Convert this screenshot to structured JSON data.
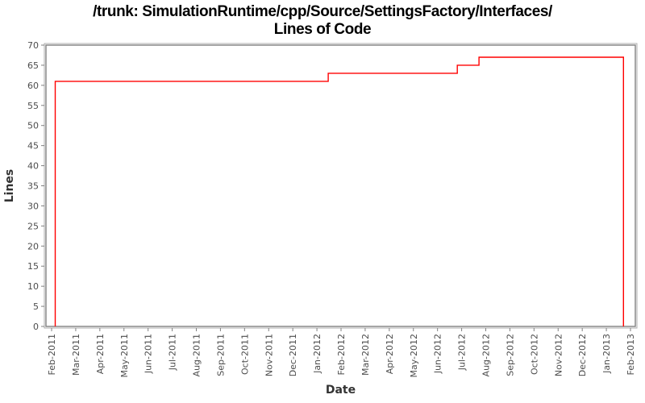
{
  "title": {
    "line1": "/trunk: SimulationRuntime/cpp/Source/SettingsFactory/Interfaces/",
    "line2": "Lines of Code"
  },
  "chart_data": {
    "type": "line",
    "subtype": "step",
    "title": "/trunk: SimulationRuntime/cpp/Source/SettingsFactory/Interfaces/ Lines of Code",
    "xlabel": "Date",
    "ylabel": "Lines",
    "x_tick_labels": [
      "Feb-2011",
      "Mar-2011",
      "Apr-2011",
      "May-2011",
      "Jun-2011",
      "Jul-2011",
      "Aug-2011",
      "Sep-2011",
      "Oct-2011",
      "Nov-2011",
      "Dec-2011",
      "Jan-2012",
      "Feb-2012",
      "Mar-2012",
      "Apr-2012",
      "May-2012",
      "Jun-2012",
      "Jul-2012",
      "Aug-2012",
      "Sep-2012",
      "Oct-2012",
      "Nov-2012",
      "Dec-2012",
      "Jan-2013",
      "Feb-2013"
    ],
    "y_ticks": [
      0,
      5,
      10,
      15,
      20,
      25,
      30,
      35,
      40,
      45,
      50,
      55,
      60,
      65,
      70
    ],
    "ylim": [
      0,
      70
    ],
    "x_unit": "months since Feb-2011 tick (0 = Feb-2011, 24 = Feb-2013)",
    "grid": false,
    "legend": false,
    "series": [
      {
        "name": "Lines of Code",
        "color": "#ff0000",
        "points": [
          [
            0.15,
            0
          ],
          [
            0.15,
            61
          ],
          [
            11.47,
            61
          ],
          [
            11.47,
            63
          ],
          [
            16.82,
            63
          ],
          [
            16.82,
            65
          ],
          [
            17.72,
            65
          ],
          [
            17.72,
            67
          ],
          [
            23.71,
            67
          ],
          [
            23.71,
            0
          ]
        ]
      }
    ]
  },
  "colors": {
    "background": "#ffffff",
    "axis": "#808080",
    "tick_label": "#4d4d4d",
    "axis_label": "#333333",
    "title": "#000000",
    "series": "#ff0000"
  }
}
